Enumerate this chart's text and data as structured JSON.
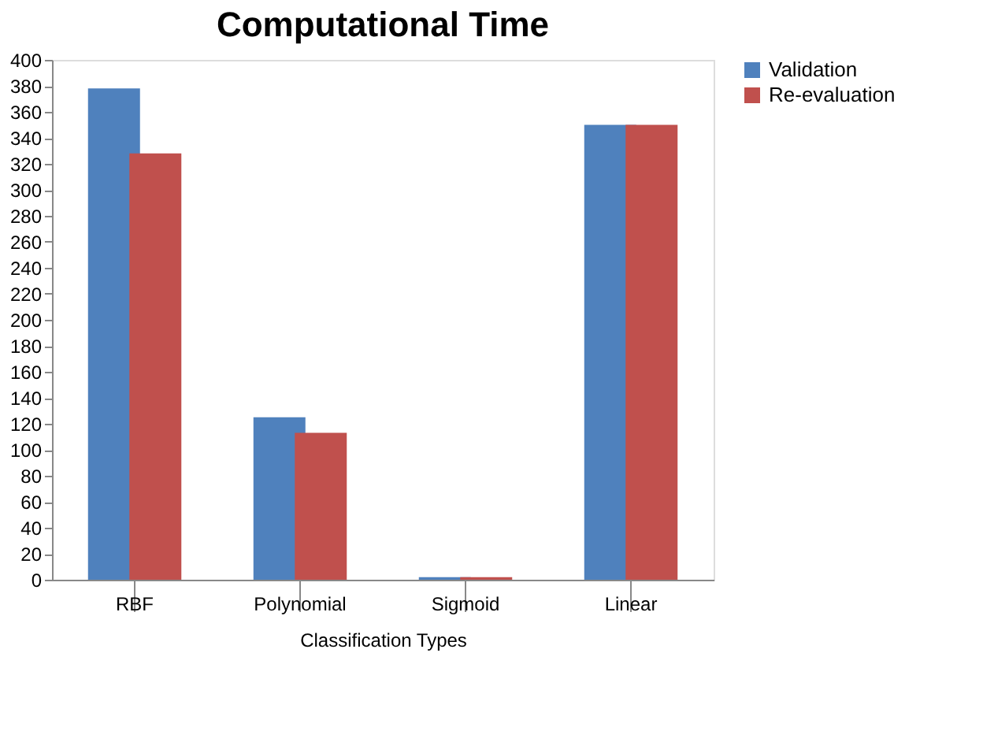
{
  "chart_data": {
    "type": "bar",
    "title": "Computational Time",
    "xlabel": "Classification Types",
    "categories": [
      "RBF",
      "Polynomial",
      "Sigmoid",
      "Linear"
    ],
    "series": [
      {
        "name": "Validation",
        "color": "#4f81bd",
        "values": [
          378,
          125,
          2,
          350
        ]
      },
      {
        "name": "Re-evaluation",
        "color": "#c0504d",
        "values": [
          328,
          113,
          2,
          350
        ]
      }
    ],
    "ylim": [
      0,
      400
    ],
    "yticks": [
      0,
      20,
      40,
      60,
      80,
      100,
      120,
      140,
      160,
      180,
      200,
      220,
      240,
      260,
      280,
      300,
      320,
      340,
      360,
      380,
      400
    ],
    "grid": false,
    "legend": "right"
  }
}
